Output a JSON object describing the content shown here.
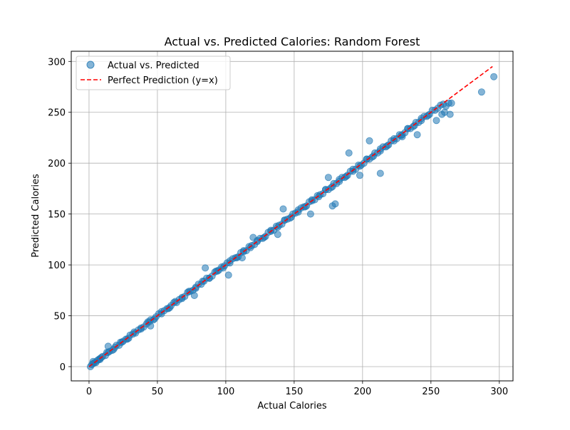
{
  "chart_data": {
    "type": "scatter",
    "title": "Actual vs. Predicted Calories: Random Forest",
    "xlabel": "Actual Calories",
    "ylabel": "Predicted Calories",
    "xlim": [
      -13,
      310
    ],
    "ylim": [
      -14,
      310
    ],
    "xticks": [
      0,
      50,
      100,
      150,
      200,
      250,
      300
    ],
    "yticks": [
      0,
      50,
      100,
      150,
      200,
      250,
      300
    ],
    "grid": true,
    "legend_position": "top-left",
    "legend": [
      {
        "label": "Actual vs. Predicted",
        "marker": "circle",
        "color": "#1f77b4"
      },
      {
        "label": "Perfect Prediction (y=x)",
        "marker": "dashed-line",
        "color": "#ff0000"
      }
    ],
    "series": [
      {
        "name": "Actual vs. Predicted",
        "color": "#1f77b4",
        "opacity": 0.55,
        "x": [
          1,
          2,
          3,
          4,
          5,
          6,
          7,
          8,
          9,
          10,
          12,
          14,
          15,
          17,
          19,
          20,
          22,
          24,
          25,
          27,
          29,
          30,
          32,
          34,
          36,
          38,
          40,
          42,
          44,
          45,
          47,
          49,
          51,
          53,
          55,
          57,
          59,
          60,
          62,
          64,
          66,
          68,
          70,
          72,
          74,
          76,
          78,
          80,
          82,
          84,
          86,
          88,
          90,
          92,
          94,
          95,
          97,
          99,
          101,
          103,
          105,
          107,
          109,
          111,
          113,
          115,
          117,
          119,
          121,
          123,
          125,
          127,
          129,
          131,
          133,
          135,
          137,
          139,
          141,
          143,
          145,
          147,
          149,
          151,
          153,
          155,
          157,
          159,
          161,
          163,
          165,
          167,
          169,
          171,
          173,
          175,
          177,
          179,
          181,
          183,
          185,
          187,
          189,
          191,
          193,
          195,
          197,
          199,
          201,
          203,
          205,
          207,
          209,
          211,
          213,
          215,
          217,
          219,
          221,
          223,
          225,
          227,
          229,
          231,
          233,
          235,
          237,
          239,
          241,
          243,
          245,
          247,
          249,
          251,
          253,
          255,
          257,
          259,
          261,
          263,
          265,
          3,
          8,
          13,
          18,
          23,
          28,
          33,
          38,
          43,
          48,
          53,
          58,
          63,
          68,
          73,
          78,
          83,
          88,
          93,
          98,
          103,
          108,
          113,
          118,
          123,
          128,
          133,
          138,
          143,
          148,
          153,
          158,
          163,
          168,
          173,
          178,
          183,
          188,
          193,
          198,
          203,
          208,
          213,
          218,
          223,
          228,
          233,
          238,
          243,
          248,
          14,
          45,
          77,
          85,
          102,
          112,
          120,
          138,
          142,
          162,
          175,
          178,
          180,
          190,
          198,
          205,
          213,
          229,
          240,
          254,
          258,
          260,
          264,
          287,
          296
        ],
        "y": [
          0,
          2,
          3,
          4,
          4,
          6,
          7,
          8,
          9,
          10,
          11,
          14,
          15,
          16,
          19,
          21,
          21,
          24,
          25,
          27,
          28,
          31,
          32,
          33,
          36,
          38,
          39,
          42,
          44,
          46,
          46,
          49,
          52,
          52,
          55,
          57,
          58,
          60,
          63,
          63,
          66,
          68,
          69,
          73,
          74,
          75,
          78,
          81,
          81,
          84,
          87,
          87,
          89,
          93,
          94,
          95,
          98,
          99,
          102,
          102,
          106,
          107,
          108,
          112,
          113,
          114,
          118,
          119,
          120,
          123,
          126,
          126,
          128,
          132,
          133,
          134,
          138,
          139,
          140,
          144,
          145,
          146,
          150,
          151,
          152,
          156,
          157,
          158,
          162,
          163,
          164,
          168,
          169,
          170,
          174,
          174,
          176,
          180,
          180,
          182,
          186,
          186,
          188,
          192,
          192,
          194,
          198,
          198,
          200,
          204,
          204,
          206,
          210,
          210,
          212,
          216,
          216,
          218,
          222,
          222,
          224,
          228,
          228,
          230,
          234,
          234,
          236,
          240,
          240,
          242,
          246,
          246,
          248,
          252,
          252,
          254,
          257,
          258,
          256,
          259,
          259,
          5,
          7,
          14,
          17,
          24,
          27,
          34,
          37,
          44,
          47,
          54,
          57,
          64,
          67,
          74,
          77,
          84,
          87,
          94,
          97,
          104,
          107,
          114,
          117,
          124,
          127,
          134,
          137,
          144,
          147,
          154,
          157,
          164,
          167,
          174,
          177,
          184,
          187,
          194,
          197,
          204,
          207,
          214,
          217,
          224,
          227,
          234,
          237,
          244,
          247,
          20,
          40,
          70,
          97,
          90,
          107,
          127,
          130,
          155,
          150,
          186,
          158,
          160,
          210,
          188,
          222,
          190,
          226,
          228,
          242,
          248,
          250,
          248,
          270,
          285
        ]
      },
      {
        "name": "Perfect Prediction (y=x)",
        "color": "#ff0000",
        "style": "dashed",
        "x": [
          0,
          295
        ],
        "y": [
          0,
          295
        ]
      }
    ]
  }
}
